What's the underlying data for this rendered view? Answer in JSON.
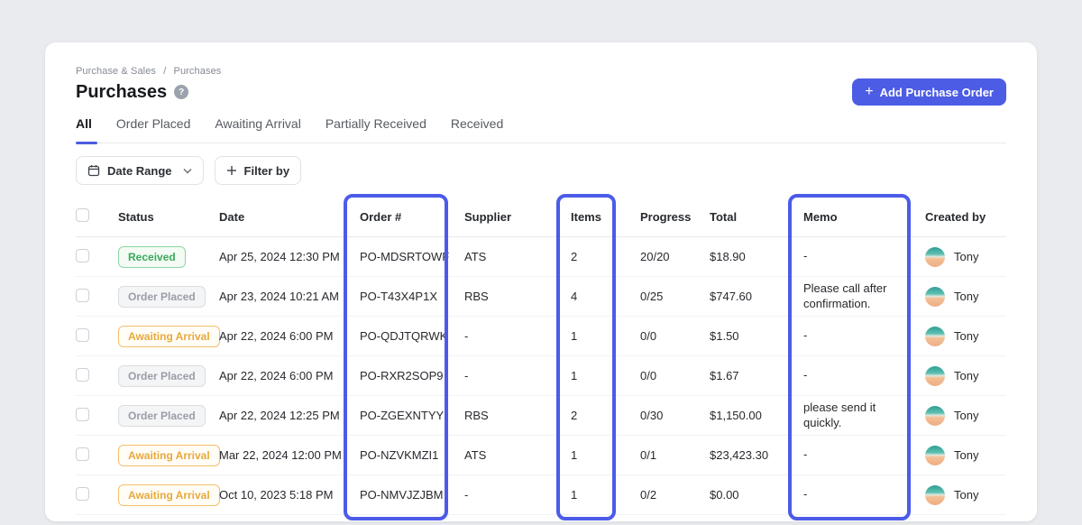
{
  "colors": {
    "page_background": "#e9ebee",
    "accent": "#4c5ce4",
    "highlight_border": "#4c5be8",
    "status_received": "#3ba95c",
    "status_placed": "#989ea6",
    "status_awaiting": "#e9a83c"
  },
  "breadcrumb": {
    "parent": "Purchase & Sales",
    "separator": "/",
    "current": "Purchases"
  },
  "header": {
    "title": "Purchases",
    "help_icon": "?",
    "add_button_label": "Add Purchase Order"
  },
  "tabs": [
    {
      "label": "All",
      "active": true
    },
    {
      "label": "Order Placed",
      "active": false
    },
    {
      "label": "Awaiting Arrival",
      "active": false
    },
    {
      "label": "Partially Received",
      "active": false
    },
    {
      "label": "Received",
      "active": false
    }
  ],
  "filters": {
    "date_range_label": "Date Range",
    "filter_by_label": "Filter by"
  },
  "table": {
    "columns": [
      "Status",
      "Date",
      "Order #",
      "Supplier",
      "Items",
      "Progress",
      "Total",
      "Memo",
      "Created by"
    ],
    "highlighted_columns": [
      "Order #",
      "Items",
      "Memo"
    ],
    "rows": [
      {
        "status": "Received",
        "status_type": "received",
        "date": "Apr 25, 2024 12:30 PM",
        "order": "PO-MDSRTOWF",
        "supplier": "ATS",
        "items": "2",
        "progress": "20/20",
        "total": "$18.90",
        "memo": "-",
        "created_by": "Tony"
      },
      {
        "status": "Order Placed",
        "status_type": "placed",
        "date": "Apr 23, 2024 10:21 AM",
        "order": "PO-T43X4P1X",
        "supplier": "RBS",
        "items": "4",
        "progress": "0/25",
        "total": "$747.60",
        "memo": "Please call after confirmation.",
        "created_by": "Tony"
      },
      {
        "status": "Awaiting Arrival",
        "status_type": "awaiting",
        "date": "Apr 22, 2024 6:00 PM",
        "order": "PO-QDJTQRWK",
        "supplier": "-",
        "items": "1",
        "progress": "0/0",
        "total": "$1.50",
        "memo": "-",
        "created_by": "Tony"
      },
      {
        "status": "Order Placed",
        "status_type": "placed",
        "date": "Apr 22, 2024 6:00 PM",
        "order": "PO-RXR2SOP9",
        "supplier": "-",
        "items": "1",
        "progress": "0/0",
        "total": "$1.67",
        "memo": "-",
        "created_by": "Tony"
      },
      {
        "status": "Order Placed",
        "status_type": "placed",
        "date": "Apr 22, 2024 12:25 PM",
        "order": "PO-ZGEXNTYY",
        "supplier": "RBS",
        "items": "2",
        "progress": "0/30",
        "total": "$1,150.00",
        "memo": "please send it quickly.",
        "created_by": "Tony"
      },
      {
        "status": "Awaiting Arrival",
        "status_type": "awaiting",
        "date": "Mar 22, 2024 12:00 PM",
        "order": "PO-NZVKMZI1",
        "supplier": "ATS",
        "items": "1",
        "progress": "0/1",
        "total": "$23,423.30",
        "memo": "-",
        "created_by": "Tony"
      },
      {
        "status": "Awaiting Arrival",
        "status_type": "awaiting",
        "date": "Oct 10, 2023 5:18 PM",
        "order": "PO-NMVJZJBM",
        "supplier": "-",
        "items": "1",
        "progress": "0/2",
        "total": "$0.00",
        "memo": "-",
        "created_by": "Tony"
      }
    ]
  }
}
